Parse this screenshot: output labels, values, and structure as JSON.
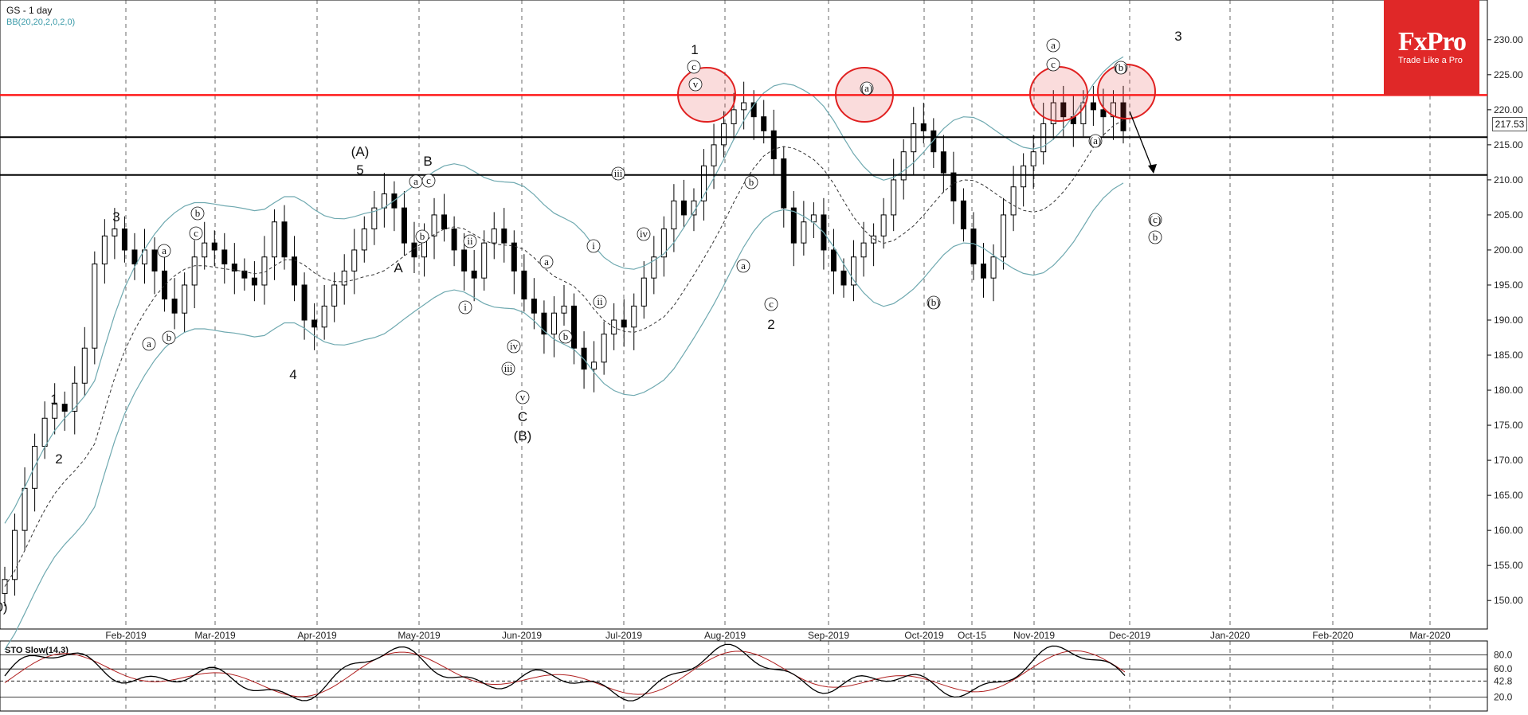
{
  "header": {
    "symbol": "GS",
    "timeframe": "- 1 day",
    "indicator": "BB(20,20,2,0,2,0)"
  },
  "logo": {
    "brand": "FxPro",
    "tagline": "Trade Like a Pro"
  },
  "oscillator": {
    "title": "STO Slow(14,3)"
  },
  "current_price": "217.53",
  "chart_data": {
    "type": "candlestick",
    "price_ticks": [
      "230.00",
      "225.00",
      "220.00",
      "215.00",
      "210.00",
      "205.00",
      "200.00",
      "195.00",
      "190.00",
      "185.00",
      "180.00",
      "175.00",
      "170.00",
      "165.00",
      "160.00",
      "155.00",
      "150.00"
    ],
    "ylim": [
      148,
      233
    ],
    "date_ticks": [
      "Feb-2019",
      "Mar-2019",
      "Apr-2019",
      "May-2019",
      "Jun-2019",
      "Jul-2019",
      "Aug-2019",
      "Sep-2019",
      "Oct-2019",
      "Oct-15",
      "Nov-2019",
      "Dec-2019",
      "Jan-2020",
      "Feb-2020",
      "Mar-2020"
    ],
    "horizontal_levels": [
      {
        "value": 222.1,
        "color": "#ff1a1a"
      },
      {
        "value": 216.1,
        "color": "#000000"
      },
      {
        "value": 210.7,
        "color": "#000000"
      }
    ],
    "sto_levels": [
      "80.0",
      "60.0",
      "42.8",
      "20.0"
    ],
    "close_series": [
      153,
      160,
      166,
      172,
      176,
      178,
      177,
      181,
      186,
      198,
      202,
      203,
      200,
      198,
      200,
      197,
      193,
      191,
      195,
      199,
      201,
      200,
      198,
      197,
      196,
      195,
      199,
      204,
      199,
      195,
      190,
      189,
      192,
      195,
      197,
      200,
      203,
      206,
      208,
      206,
      201,
      199,
      202,
      205,
      203,
      200,
      197,
      196,
      201,
      203,
      201,
      197,
      193,
      191,
      188,
      191,
      192,
      186,
      183,
      184,
      188,
      190,
      189,
      192,
      196,
      199,
      203,
      207,
      205,
      207,
      212,
      215,
      218,
      220,
      221,
      219,
      217,
      213,
      206,
      201,
      204,
      205,
      200,
      197,
      195,
      199,
      201,
      202,
      205,
      210,
      214,
      218,
      217,
      214,
      211,
      207,
      203,
      198,
      196,
      199,
      205,
      209,
      212,
      214,
      218,
      221,
      219,
      218,
      221,
      220,
      219,
      221,
      217
    ],
    "wave_labels": [
      "0)",
      "1",
      "2",
      "3",
      "a",
      "b",
      "c",
      "b",
      "a",
      "4",
      "(A)",
      "5",
      "A",
      "B",
      "a",
      "c",
      "b",
      "ii",
      "i",
      "iii",
      "iv",
      "v",
      "C",
      "(B)",
      "a",
      "b",
      "i",
      "ii",
      "iii",
      "iv",
      "1",
      "c",
      "v",
      "b",
      "a",
      "c",
      "2",
      "(a)",
      "(b)",
      "a",
      "c",
      "(a)",
      "(b)",
      "3",
      "(c)",
      "b"
    ]
  }
}
